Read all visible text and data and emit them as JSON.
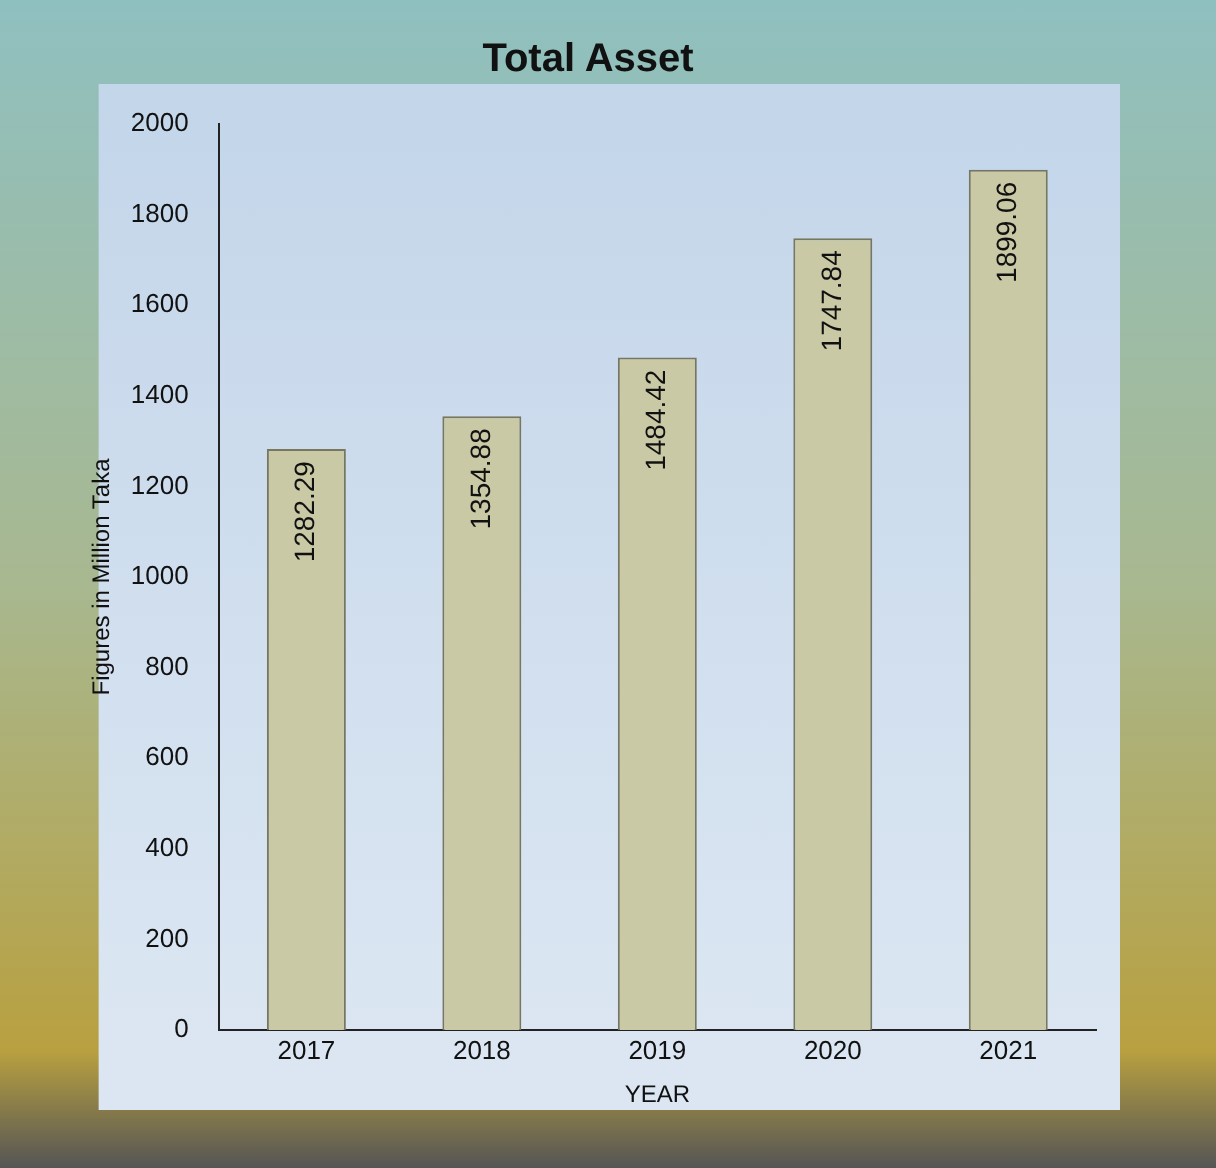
{
  "chart_data": {
    "type": "bar",
    "title": "Total Asset",
    "xlabel": "YEAR",
    "ylabel": "Figures in Million Taka",
    "categories": [
      "2017",
      "2018",
      "2019",
      "2020",
      "2021"
    ],
    "values": [
      1282.29,
      1354.88,
      1484.42,
      1747.84,
      1899.06
    ],
    "color": "#c9c9a6",
    "ylim": [
      0,
      2000
    ],
    "yticks": [
      0,
      200,
      400,
      600,
      800,
      1000,
      1200,
      1400,
      1600,
      1800,
      2000
    ],
    "grid": false,
    "data_labels": true,
    "legend": false
  }
}
